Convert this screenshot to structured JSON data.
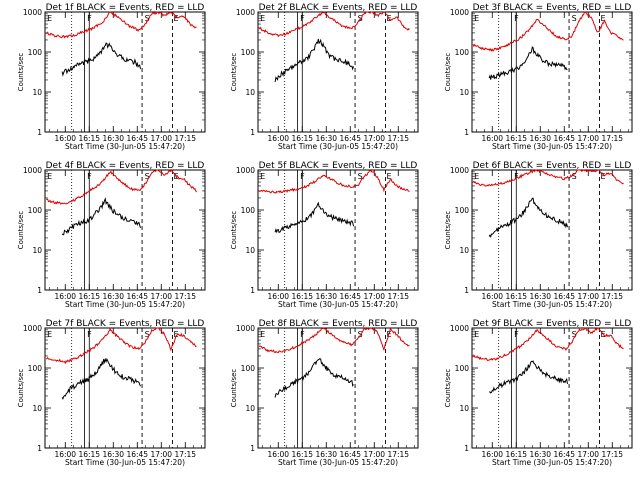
{
  "colors": {
    "events": "#000000",
    "lld": "#e00000",
    "background": "#ffffff"
  },
  "xlabel": "Start Time (30-Jun-05 15:47:20)",
  "ylabel": "Counts/sec",
  "x_ticks": [
    "16:00",
    "16:15",
    "16:30",
    "16:45",
    "17:00",
    "17:15"
  ],
  "y_ticks": [
    "1",
    "10",
    "100",
    "1000"
  ],
  "markers": [
    "E",
    "F",
    "S",
    "E"
  ],
  "chart_data": [
    {
      "type": "line",
      "title": "Det 1f BLACK = Events, RED = LLD",
      "xlabel": "Start Time (30-Jun-05 15:47:20)",
      "ylabel": "Counts/sec",
      "ylim": [
        1,
        1000
      ],
      "yscale": "log",
      "grid": false,
      "series": [
        {
          "color": "#000000",
          "x": [
            "15:58",
            "16:02",
            "16:06",
            "16:10",
            "16:14",
            "16:18",
            "16:22",
            "16:25",
            "16:28",
            "16:32",
            "16:36",
            "16:40",
            "16:44",
            "16:47"
          ],
          "values": [
            30,
            35,
            45,
            52,
            58,
            70,
            95,
            150,
            140,
            90,
            70,
            60,
            55,
            40
          ]
        },
        {
          "color": "#e00000",
          "x": [
            "15:48",
            "15:54",
            "16:00",
            "16:06",
            "16:12",
            "16:18",
            "16:24",
            "16:28",
            "16:34",
            "16:40",
            "16:46",
            "16:50",
            "16:54",
            "16:58",
            "17:02",
            "17:06",
            "17:10",
            "17:14",
            "17:18",
            "17:22"
          ],
          "values": [
            300,
            250,
            240,
            260,
            330,
            400,
            600,
            1000,
            700,
            450,
            350,
            500,
            900,
            1000,
            800,
            1000,
            700,
            800,
            500,
            400
          ]
        }
      ]
    },
    {
      "type": "line",
      "title": "Det 2f BLACK = Events, RED = LLD",
      "xlabel": "Start Time (30-Jun-05 15:47:20)",
      "ylabel": "Counts/sec",
      "ylim": [
        1,
        1000
      ],
      "yscale": "log",
      "grid": false,
      "series": [
        {
          "color": "#000000",
          "x": [
            "15:58",
            "16:02",
            "16:06",
            "16:10",
            "16:14",
            "16:18",
            "16:22",
            "16:25",
            "16:28",
            "16:32",
            "16:36",
            "16:40",
            "16:44",
            "16:47"
          ],
          "values": [
            20,
            28,
            36,
            45,
            55,
            70,
            110,
            200,
            150,
            80,
            65,
            60,
            50,
            40
          ]
        },
        {
          "color": "#e00000",
          "x": [
            "15:48",
            "15:54",
            "16:00",
            "16:06",
            "16:12",
            "16:18",
            "16:24",
            "16:28",
            "16:34",
            "16:40",
            "16:46",
            "16:50",
            "16:54",
            "16:58",
            "17:02",
            "17:06",
            "17:10",
            "17:14",
            "17:18",
            "17:22"
          ],
          "values": [
            400,
            300,
            260,
            290,
            380,
            500,
            750,
            1000,
            650,
            450,
            380,
            550,
            950,
            1000,
            800,
            1000,
            650,
            750,
            450,
            350
          ]
        }
      ]
    },
    {
      "type": "line",
      "title": "Det 3f BLACK = Events, RED = LLD",
      "xlabel": "Start Time (30-Jun-05 15:47:20)",
      "ylabel": "Counts/sec",
      "ylim": [
        1,
        1000
      ],
      "yscale": "log",
      "grid": false,
      "series": [
        {
          "color": "#000000",
          "x": [
            "15:58",
            "16:02",
            "16:06",
            "16:10",
            "16:14",
            "16:18",
            "16:22",
            "16:25",
            "16:28",
            "16:32",
            "16:36",
            "16:40",
            "16:44",
            "16:47"
          ],
          "values": [
            22,
            25,
            28,
            32,
            35,
            45,
            75,
            120,
            90,
            60,
            50,
            48,
            45,
            40
          ]
        },
        {
          "color": "#e00000",
          "x": [
            "15:48",
            "15:54",
            "16:00",
            "16:06",
            "16:12",
            "16:18",
            "16:24",
            "16:28",
            "16:34",
            "16:40",
            "16:46",
            "16:50",
            "16:54",
            "16:58",
            "17:02",
            "17:06",
            "17:10",
            "17:14",
            "17:18",
            "17:22"
          ],
          "values": [
            150,
            120,
            110,
            130,
            170,
            230,
            400,
            650,
            400,
            250,
            200,
            250,
            600,
            1000,
            700,
            300,
            600,
            300,
            250,
            200
          ]
        }
      ]
    },
    {
      "type": "line",
      "title": "Det 4f BLACK = Events, RED = LLD",
      "xlabel": "Start Time (30-Jun-05 15:47:20)",
      "ylabel": "Counts/sec",
      "ylim": [
        1,
        1000
      ],
      "yscale": "log",
      "grid": false,
      "series": [
        {
          "color": "#000000",
          "x": [
            "15:58",
            "16:02",
            "16:06",
            "16:10",
            "16:14",
            "16:18",
            "16:22",
            "16:25",
            "16:28",
            "16:32",
            "16:36",
            "16:40",
            "16:44",
            "16:47"
          ],
          "values": [
            25,
            32,
            40,
            48,
            55,
            75,
            110,
            170,
            120,
            75,
            65,
            55,
            50,
            40
          ]
        },
        {
          "color": "#e00000",
          "x": [
            "15:48",
            "15:54",
            "16:00",
            "16:06",
            "16:12",
            "16:18",
            "16:24",
            "16:28",
            "16:34",
            "16:40",
            "16:46",
            "16:50",
            "16:54",
            "16:58",
            "17:02",
            "17:06",
            "17:10",
            "17:14",
            "17:18",
            "17:22"
          ],
          "values": [
            180,
            150,
            150,
            180,
            250,
            350,
            550,
            900,
            550,
            350,
            300,
            450,
            850,
            1000,
            750,
            1000,
            650,
            600,
            400,
            300
          ]
        }
      ]
    },
    {
      "type": "line",
      "title": "Det 5f BLACK = Events, RED = LLD",
      "xlabel": "Start Time (30-Jun-05 15:47:20)",
      "ylabel": "Counts/sec",
      "ylim": [
        1,
        1000
      ],
      "yscale": "log",
      "grid": false,
      "series": [
        {
          "color": "#000000",
          "x": [
            "15:58",
            "16:02",
            "16:06",
            "16:10",
            "16:14",
            "16:18",
            "16:22",
            "16:25",
            "16:28",
            "16:32",
            "16:36",
            "16:40",
            "16:44",
            "16:47"
          ],
          "values": [
            28,
            32,
            38,
            42,
            48,
            60,
            90,
            140,
            100,
            70,
            60,
            55,
            50,
            45
          ]
        },
        {
          "color": "#e00000",
          "x": [
            "15:48",
            "15:54",
            "16:00",
            "16:06",
            "16:12",
            "16:18",
            "16:24",
            "16:28",
            "16:34",
            "16:40",
            "16:46",
            "16:50",
            "16:54",
            "16:58",
            "17:02",
            "17:06",
            "17:10",
            "17:14",
            "17:18",
            "17:22"
          ],
          "values": [
            300,
            280,
            280,
            300,
            340,
            400,
            550,
            750,
            550,
            420,
            380,
            420,
            700,
            1000,
            650,
            320,
            600,
            400,
            330,
            300
          ]
        }
      ]
    },
    {
      "type": "line",
      "title": "Det 6f BLACK = Events, RED = LLD",
      "xlabel": "Start Time (30-Jun-05 15:47:20)",
      "ylabel": "Counts/sec",
      "ylim": [
        1,
        1000
      ],
      "yscale": "log",
      "grid": false,
      "series": [
        {
          "color": "#000000",
          "x": [
            "15:58",
            "16:02",
            "16:06",
            "16:10",
            "16:14",
            "16:18",
            "16:22",
            "16:25",
            "16:28",
            "16:32",
            "16:36",
            "16:40",
            "16:44",
            "16:47"
          ],
          "values": [
            22,
            30,
            38,
            45,
            55,
            75,
            120,
            190,
            130,
            80,
            65,
            55,
            50,
            40
          ]
        },
        {
          "color": "#e00000",
          "x": [
            "15:48",
            "15:54",
            "16:00",
            "16:06",
            "16:12",
            "16:18",
            "16:24",
            "16:28",
            "16:34",
            "16:40",
            "16:46",
            "16:50",
            "16:54",
            "16:58",
            "17:02",
            "17:06",
            "17:10",
            "17:14",
            "17:18",
            "17:22"
          ],
          "values": [
            500,
            420,
            420,
            460,
            560,
            700,
            900,
            1000,
            800,
            650,
            600,
            750,
            1000,
            1000,
            900,
            1000,
            750,
            850,
            550,
            450
          ]
        }
      ]
    },
    {
      "type": "line",
      "title": "Det 7f BLACK = Events, RED = LLD",
      "xlabel": "Start Time (30-Jun-05 15:47:20)",
      "ylabel": "Counts/sec",
      "ylim": [
        1,
        1000
      ],
      "yscale": "log",
      "grid": false,
      "series": [
        {
          "color": "#000000",
          "x": [
            "15:58",
            "16:02",
            "16:06",
            "16:10",
            "16:14",
            "16:18",
            "16:22",
            "16:25",
            "16:28",
            "16:32",
            "16:36",
            "16:40",
            "16:44",
            "16:47"
          ],
          "values": [
            18,
            28,
            36,
            45,
            52,
            70,
            110,
            170,
            120,
            75,
            60,
            55,
            45,
            40
          ]
        },
        {
          "color": "#e00000",
          "x": [
            "15:48",
            "15:54",
            "16:00",
            "16:06",
            "16:12",
            "16:18",
            "16:24",
            "16:28",
            "16:34",
            "16:40",
            "16:46",
            "16:50",
            "16:54",
            "16:58",
            "17:02",
            "17:06",
            "17:10",
            "17:14",
            "17:18",
            "17:22"
          ],
          "values": [
            180,
            160,
            140,
            170,
            230,
            330,
            550,
            900,
            550,
            350,
            300,
            450,
            850,
            1000,
            700,
            300,
            700,
            650,
            450,
            350
          ]
        }
      ]
    },
    {
      "type": "line",
      "title": "Det 8f BLACK = Events, RED = LLD",
      "xlabel": "Start Time (30-Jun-05 15:47:20)",
      "ylabel": "Counts/sec",
      "ylim": [
        1,
        1000
      ],
      "yscale": "log",
      "grid": false,
      "series": [
        {
          "color": "#000000",
          "x": [
            "15:58",
            "16:02",
            "16:06",
            "16:10",
            "16:14",
            "16:18",
            "16:22",
            "16:25",
            "16:28",
            "16:32",
            "16:36",
            "16:40",
            "16:44",
            "16:47"
          ],
          "values": [
            20,
            28,
            36,
            44,
            52,
            70,
            110,
            180,
            130,
            80,
            65,
            60,
            50,
            40
          ]
        },
        {
          "color": "#e00000",
          "x": [
            "15:48",
            "15:54",
            "16:00",
            "16:06",
            "16:12",
            "16:18",
            "16:24",
            "16:28",
            "16:34",
            "16:40",
            "16:46",
            "16:50",
            "16:54",
            "16:58",
            "17:02",
            "17:06",
            "17:10",
            "17:14",
            "17:18",
            "17:22"
          ],
          "values": [
            350,
            270,
            250,
            280,
            360,
            480,
            720,
            1000,
            650,
            450,
            380,
            550,
            950,
            1000,
            800,
            300,
            900,
            700,
            450,
            350
          ]
        }
      ]
    },
    {
      "type": "line",
      "title": "Det 9f BLACK = Events, RED = LLD",
      "xlabel": "Start Time (30-Jun-05 15:47:20)",
      "ylabel": "Counts/sec",
      "ylim": [
        1,
        1000
      ],
      "yscale": "log",
      "grid": false,
      "series": [
        {
          "color": "#000000",
          "x": [
            "15:58",
            "16:02",
            "16:06",
            "16:10",
            "16:14",
            "16:18",
            "16:22",
            "16:25",
            "16:28",
            "16:32",
            "16:36",
            "16:40",
            "16:44",
            "16:47"
          ],
          "values": [
            25,
            30,
            38,
            44,
            50,
            65,
            100,
            160,
            110,
            75,
            60,
            55,
            50,
            45
          ]
        },
        {
          "color": "#e00000",
          "x": [
            "15:48",
            "15:54",
            "16:00",
            "16:06",
            "16:12",
            "16:18",
            "16:24",
            "16:28",
            "16:34",
            "16:40",
            "16:46",
            "16:50",
            "16:54",
            "16:58",
            "17:02",
            "17:06",
            "17:10",
            "17:14",
            "17:18",
            "17:22"
          ],
          "values": [
            200,
            170,
            160,
            190,
            260,
            360,
            580,
            900,
            550,
            350,
            300,
            450,
            850,
            1000,
            750,
            1000,
            650,
            650,
            400,
            300
          ]
        }
      ]
    }
  ]
}
